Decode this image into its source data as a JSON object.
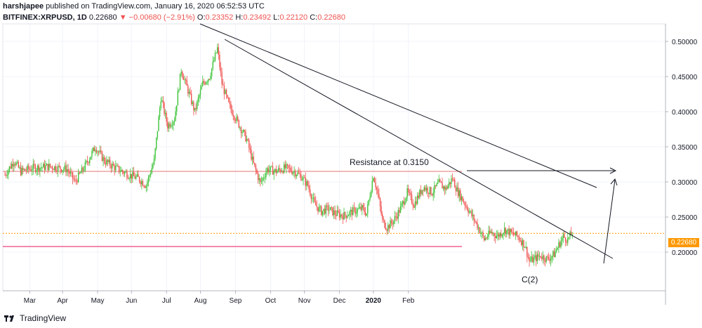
{
  "header": {
    "publisher_line": "harshjapee published on TradingView.com, January 16, 2020 06:52:53 UTC",
    "symbol": "BITFINEX:XRPUSD, 1D",
    "last": "0.22680",
    "change": "−0.00680 (−2.91%)",
    "open_label": "O:",
    "open": "0.23352",
    "high_label": "H:",
    "high": "0.23492",
    "low_label": "L:",
    "low": "0.22120",
    "close_label": "C:",
    "close": "0.22680"
  },
  "annotations": {
    "resistance": "Resistance at 0.3150",
    "wave": "C(2)"
  },
  "footer": {
    "brand": "TradingView"
  },
  "colors": {
    "up": "#26a69a",
    "up_bright": "#3fc43a",
    "down": "#ef5350",
    "resistance_line": "#e57373",
    "support_line": "#f06292",
    "price_line": "#ff9800",
    "trend": "#131722"
  },
  "chart_data": {
    "type": "candlestick",
    "title": "BITFINEX:XRPUSD, 1D",
    "ylim": [
      0.145,
      0.525
    ],
    "y_ticks": [
      0.5,
      0.45,
      0.4,
      0.35,
      0.3,
      0.25,
      0.2
    ],
    "y_tick_labels": [
      "0.50000",
      "0.45000",
      "0.40000",
      "0.35000",
      "0.30000",
      "0.25000",
      "0.20000"
    ],
    "x_ticks": [
      "Mar",
      "Apr",
      "May",
      "Jun",
      "Jul",
      "Aug",
      "Sep",
      "Oct",
      "Nov",
      "Dec",
      "2020",
      "Feb"
    ],
    "current_price": 0.2268,
    "current_price_label": "0.22680",
    "resistance_level": 0.315,
    "support_level": 0.208,
    "anchor_path": [
      [
        0,
        0.31
      ],
      [
        8,
        0.33
      ],
      [
        14,
        0.315
      ],
      [
        25,
        0.32
      ],
      [
        40,
        0.322
      ],
      [
        55,
        0.318
      ],
      [
        62,
        0.3
      ],
      [
        70,
        0.32
      ],
      [
        80,
        0.35
      ],
      [
        88,
        0.33
      ],
      [
        100,
        0.318
      ],
      [
        110,
        0.31
      ],
      [
        118,
        0.305
      ],
      [
        125,
        0.295
      ],
      [
        132,
        0.33
      ],
      [
        138,
        0.42
      ],
      [
        144,
        0.38
      ],
      [
        150,
        0.39
      ],
      [
        156,
        0.46
      ],
      [
        162,
        0.43
      ],
      [
        168,
        0.4
      ],
      [
        175,
        0.44
      ],
      [
        181,
        0.45
      ],
      [
        188,
        0.49
      ],
      [
        192,
        0.44
      ],
      [
        198,
        0.41
      ],
      [
        206,
        0.385
      ],
      [
        214,
        0.36
      ],
      [
        220,
        0.325
      ],
      [
        226,
        0.298
      ],
      [
        232,
        0.318
      ],
      [
        240,
        0.315
      ],
      [
        248,
        0.32
      ],
      [
        256,
        0.315
      ],
      [
        262,
        0.308
      ],
      [
        268,
        0.295
      ],
      [
        274,
        0.268
      ],
      [
        280,
        0.258
      ],
      [
        286,
        0.262
      ],
      [
        292,
        0.255
      ],
      [
        300,
        0.252
      ],
      [
        308,
        0.258
      ],
      [
        316,
        0.262
      ],
      [
        320,
        0.255
      ],
      [
        326,
        0.31
      ],
      [
        330,
        0.282
      ],
      [
        334,
        0.245
      ],
      [
        338,
        0.235
      ],
      [
        344,
        0.245
      ],
      [
        350,
        0.262
      ],
      [
        356,
        0.285
      ],
      [
        362,
        0.268
      ],
      [
        370,
        0.293
      ],
      [
        378,
        0.285
      ],
      [
        384,
        0.298
      ],
      [
        390,
        0.29
      ],
      [
        396,
        0.305
      ],
      [
        400,
        0.288
      ],
      [
        406,
        0.272
      ],
      [
        412,
        0.255
      ],
      [
        418,
        0.238
      ],
      [
        424,
        0.218
      ],
      [
        430,
        0.228
      ],
      [
        436,
        0.223
      ],
      [
        442,
        0.232
      ],
      [
        448,
        0.227
      ],
      [
        454,
        0.222
      ],
      [
        460,
        0.21
      ],
      [
        464,
        0.187
      ],
      [
        468,
        0.19
      ],
      [
        474,
        0.195
      ],
      [
        480,
        0.19
      ],
      [
        486,
        0.197
      ],
      [
        490,
        0.21
      ],
      [
        494,
        0.222
      ],
      [
        498,
        0.218
      ],
      [
        502,
        0.228
      ]
    ]
  }
}
